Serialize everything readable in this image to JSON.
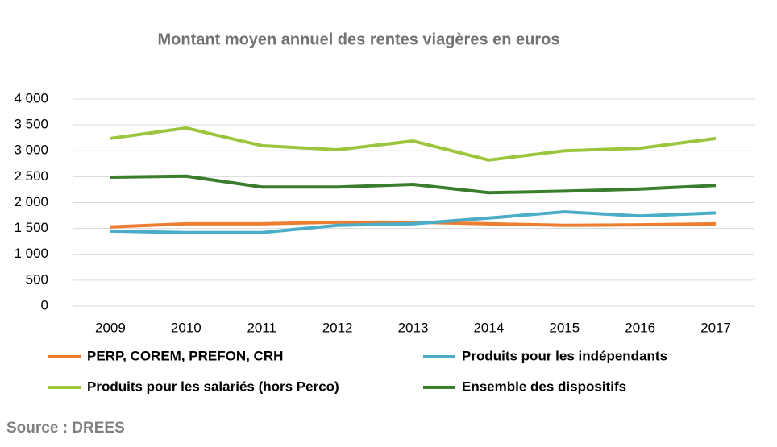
{
  "chart_data": {
    "type": "line",
    "title": "Montant moyen annuel des rentes viagères en euros",
    "source": "Source : DREES",
    "categories": [
      "2009",
      "2010",
      "2011",
      "2012",
      "2013",
      "2014",
      "2015",
      "2016",
      "2017"
    ],
    "series": [
      {
        "name": "PERP, COREM, PREFON, CRH",
        "color": "#ed7d31",
        "values": [
          1530,
          1590,
          1590,
          1620,
          1620,
          1590,
          1560,
          1570,
          1590
        ]
      },
      {
        "name": "Produits pour les indépendants",
        "color": "#4bacc6",
        "values": [
          1450,
          1420,
          1420,
          1560,
          1590,
          1700,
          1820,
          1740,
          1800
        ]
      },
      {
        "name": "Produits pour les salariés (hors Perco)",
        "color": "#9bc53d",
        "values": [
          3240,
          3440,
          3100,
          3020,
          3190,
          2820,
          3000,
          3050,
          3240
        ]
      },
      {
        "name": "Ensemble des dispositifs",
        "color": "#3a7d2c",
        "values": [
          2490,
          2510,
          2300,
          2300,
          2350,
          2190,
          2220,
          2260,
          2330
        ]
      }
    ],
    "ylim": [
      0,
      4000
    ],
    "yticks": [
      0,
      500,
      {
        "value": 1000,
        "label": "1 000"
      },
      {
        "value": 1500,
        "label": "1 500"
      },
      {
        "value": 2000,
        "label": "2 000"
      },
      {
        "value": 2500,
        "label": "2 500"
      },
      {
        "value": 3000,
        "label": "3 000"
      },
      {
        "value": 3500,
        "label": "3 500"
      },
      {
        "value": 4000,
        "label": "4 000"
      }
    ],
    "grid": true
  }
}
